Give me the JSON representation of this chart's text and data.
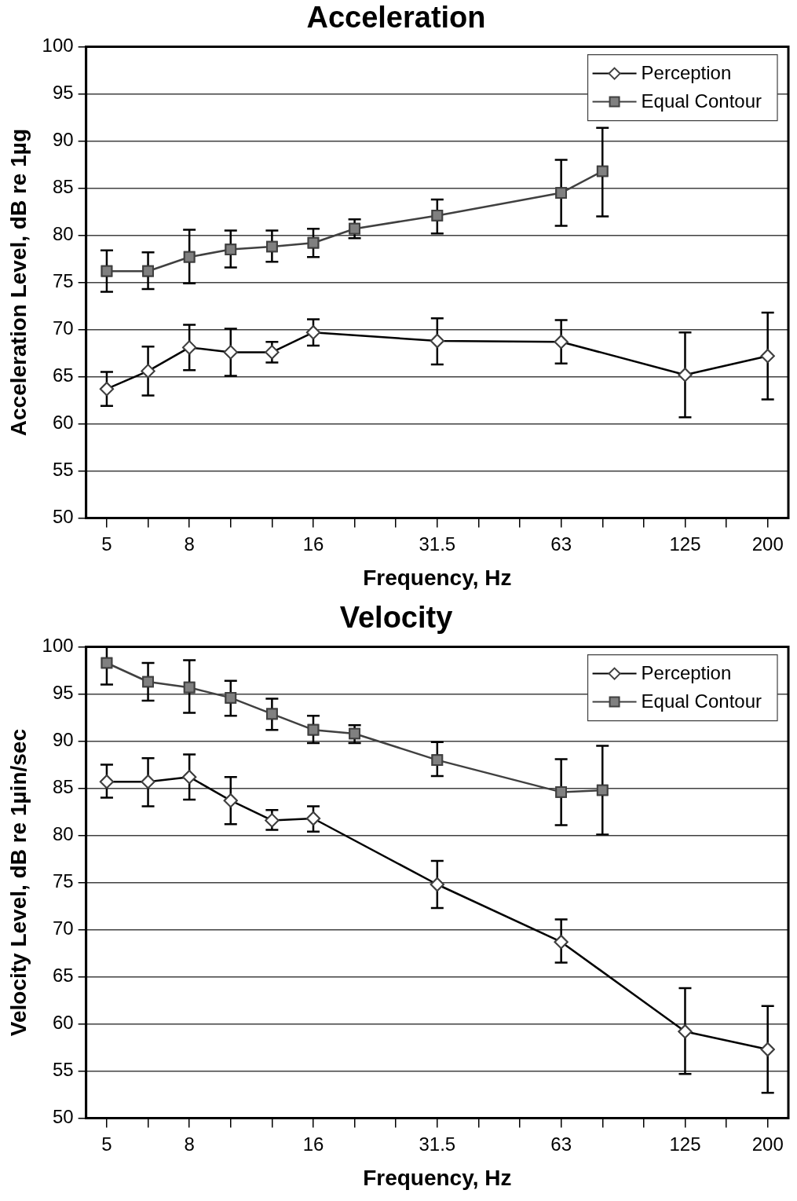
{
  "chart_data": [
    {
      "type": "line",
      "title": "Acceleration",
      "xlabel": "Frequency, Hz",
      "ylabel": "Acceleration Level, dB re 1µg",
      "categories": [
        "5",
        null,
        "8",
        null,
        null,
        "16",
        null,
        null,
        "31.5",
        null,
        null,
        "63",
        null,
        null,
        "125",
        null,
        "200"
      ],
      "series": [
        {
          "name": "Perception",
          "color": "#000000",
          "marker": "diamond",
          "values": [
            63.7,
            65.6,
            68.1,
            67.6,
            67.6,
            69.7,
            null,
            null,
            68.8,
            null,
            null,
            68.7,
            null,
            null,
            65.2,
            null,
            67.2
          ],
          "errors": [
            [
              61.9,
              65.5
            ],
            [
              63.0,
              68.2
            ],
            [
              65.7,
              70.5
            ],
            [
              65.1,
              70.1
            ],
            [
              66.5,
              68.7
            ],
            [
              68.3,
              71.1
            ],
            null,
            null,
            [
              66.3,
              71.2
            ],
            null,
            null,
            [
              66.4,
              71.0
            ],
            null,
            null,
            [
              60.7,
              69.7
            ],
            null,
            [
              62.6,
              71.8
            ]
          ]
        },
        {
          "name": "Equal Contour",
          "color": "#808080",
          "marker": "square",
          "values": [
            76.2,
            76.2,
            77.7,
            78.5,
            78.8,
            79.2,
            80.7,
            null,
            82.1,
            null,
            null,
            84.5,
            86.8,
            null,
            null,
            null,
            null
          ],
          "errors": [
            [
              74.0,
              78.4
            ],
            [
              74.3,
              78.2
            ],
            [
              74.9,
              80.6
            ],
            [
              76.6,
              80.5
            ],
            [
              77.2,
              80.5
            ],
            [
              77.7,
              80.7
            ],
            [
              79.7,
              81.7
            ],
            null,
            [
              80.2,
              83.8
            ],
            null,
            null,
            [
              81.0,
              88.0
            ],
            [
              82.0,
              91.4
            ],
            null,
            null,
            null,
            null
          ]
        }
      ],
      "ylim": [
        50,
        100
      ],
      "yticks": [
        50,
        55,
        60,
        65,
        70,
        75,
        80,
        85,
        90,
        95,
        100
      ],
      "grid": "y",
      "legend": "top right"
    },
    {
      "type": "line",
      "title": "Velocity",
      "xlabel": "Frequency, Hz",
      "ylabel": "Velocity Level, dB re 1µin/sec",
      "categories": [
        "5",
        null,
        "8",
        null,
        null,
        "16",
        null,
        null,
        "31.5",
        null,
        null,
        "63",
        null,
        null,
        "125",
        null,
        "200"
      ],
      "series": [
        {
          "name": "Perception",
          "color": "#000000",
          "marker": "diamond",
          "values": [
            85.7,
            85.7,
            86.2,
            83.7,
            81.6,
            81.8,
            null,
            null,
            74.8,
            null,
            null,
            68.7,
            null,
            null,
            59.2,
            null,
            57.3
          ],
          "errors": [
            [
              84.0,
              87.5
            ],
            [
              83.1,
              88.2
            ],
            [
              83.8,
              88.6
            ],
            [
              81.2,
              86.2
            ],
            [
              80.6,
              82.7
            ],
            [
              80.4,
              83.1
            ],
            null,
            null,
            [
              72.3,
              77.3
            ],
            null,
            null,
            [
              66.5,
              71.1
            ],
            null,
            null,
            [
              54.7,
              63.8
            ],
            null,
            [
              52.7,
              61.9
            ]
          ]
        },
        {
          "name": "Equal Contour",
          "color": "#808080",
          "marker": "square",
          "values": [
            98.3,
            96.3,
            95.7,
            94.6,
            92.9,
            91.2,
            90.8,
            null,
            88.0,
            null,
            null,
            84.6,
            84.8,
            null,
            null,
            null,
            null
          ],
          "errors": [
            [
              96.0,
              100
            ],
            [
              94.3,
              98.3
            ],
            [
              93.0,
              98.6
            ],
            [
              92.7,
              96.4
            ],
            [
              91.2,
              94.5
            ],
            [
              89.8,
              92.7
            ],
            [
              89.8,
              91.7
            ],
            null,
            [
              86.3,
              89.9
            ],
            null,
            null,
            [
              81.1,
              88.1
            ],
            [
              80.1,
              89.5
            ],
            null,
            null,
            null,
            null
          ]
        }
      ],
      "ylim": [
        50,
        100
      ],
      "yticks": [
        50,
        55,
        60,
        65,
        70,
        75,
        80,
        85,
        90,
        95,
        100
      ],
      "grid": "y",
      "legend": "top right"
    }
  ]
}
